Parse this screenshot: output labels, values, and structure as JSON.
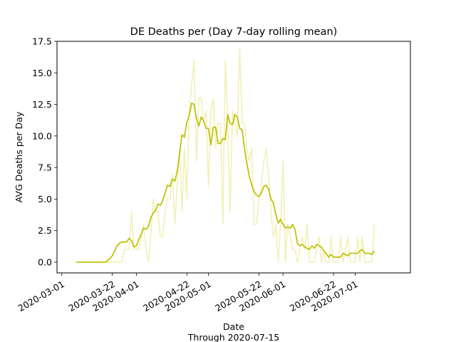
{
  "chart_data": {
    "type": "line",
    "title": "DE Deaths per (Day 7-day rolling mean)",
    "xlabel": "Date",
    "xlabel_sub": "Through 2020-07-15",
    "ylabel": "AVG Deaths per Day",
    "xlim": [
      "2020-02-28",
      "2020-07-24"
    ],
    "ylim": [
      -0.85,
      17.5
    ],
    "x_ticks": [
      "2020-03-01",
      "2020-03-22",
      "2020-04-01",
      "2020-04-22",
      "2020-05-01",
      "2020-05-22",
      "2020-06-01",
      "2020-06-22",
      "2020-07-01"
    ],
    "y_ticks": [
      0.0,
      2.5,
      5.0,
      7.5,
      10.0,
      12.5,
      15.0,
      17.5
    ],
    "y_tick_labels": [
      "0.0",
      "2.5",
      "5.0",
      "7.5",
      "10.0",
      "12.5",
      "15.0",
      "17.5"
    ],
    "grid": false,
    "colors": {
      "daily": "#f2f0b8",
      "rolling": "#bfbf00"
    },
    "x_start": "2020-03-07",
    "series": [
      {
        "key": "daily",
        "values": [
          0,
          0,
          0,
          0,
          0,
          0,
          0,
          0,
          0,
          0,
          0,
          0,
          0,
          0,
          0,
          0,
          0,
          0,
          0,
          0,
          1,
          1,
          1,
          4,
          1,
          1,
          1,
          2,
          3,
          1,
          0,
          2,
          5,
          4,
          4,
          2,
          2,
          4,
          5,
          5,
          7,
          3,
          6,
          9,
          4,
          9,
          5,
          12,
          14,
          16,
          8,
          13,
          13,
          11,
          12,
          6,
          12,
          13,
          9,
          11,
          11,
          3,
          16,
          11,
          4,
          12,
          11,
          10,
          17,
          11,
          11,
          9,
          8,
          9,
          3,
          3,
          5,
          6,
          8,
          9,
          7,
          4,
          2,
          3,
          0,
          3,
          8,
          0,
          3,
          2,
          1,
          1,
          0,
          1,
          2,
          1,
          3,
          0,
          0,
          0,
          1,
          2,
          0,
          1,
          0,
          0,
          2,
          0,
          0,
          0,
          2,
          0,
          1,
          2,
          0,
          0,
          0,
          2,
          0,
          2,
          0,
          0,
          0,
          0,
          3
        ]
      },
      {
        "key": "rolling",
        "values": [
          0,
          0,
          0,
          0,
          0,
          0,
          0,
          0,
          0,
          0,
          0,
          0,
          0,
          0.1,
          0.3,
          0.5,
          0.9,
          1.3,
          1.5,
          1.6,
          1.6,
          1.6,
          1.9,
          1.7,
          1.2,
          1.3,
          1.8,
          2.2,
          2.7,
          2.6,
          2.8,
          3.5,
          3.9,
          4.1,
          4.6,
          4.5,
          4.9,
          5.5,
          6.1,
          6.0,
          6.6,
          6.4,
          7.2,
          8.6,
          10.1,
          9.9,
          11.1,
          11.6,
          12.6,
          12.5,
          11.4,
          10.8,
          11.5,
          11.2,
          10.6,
          10.6,
          9.3,
          10.7,
          10.7,
          9.4,
          9.4,
          9.8,
          9.7,
          11.7,
          11.0,
          10.9,
          11.7,
          11.5,
          10.6,
          10.5,
          9.0,
          7.8,
          6.8,
          6.1,
          5.6,
          5.3,
          5.2,
          5.5,
          6.0,
          6.1,
          5.8,
          5.0,
          4.7,
          3.8,
          3.1,
          3.4,
          3.0,
          2.7,
          2.8,
          2.7,
          3.0,
          2.6,
          1.5,
          1.3,
          1.4,
          1.2,
          1.1,
          1.0,
          1.3,
          1.1,
          1.4,
          1.3,
          1.2,
          0.9,
          0.7,
          0.4,
          0.6,
          0.4,
          0.4,
          0.4,
          0.4,
          0.7,
          0.6,
          0.5,
          0.7,
          0.7,
          0.7,
          0.7,
          0.9,
          1.0,
          0.7,
          0.7,
          0.7,
          0.6,
          0.9
        ]
      }
    ]
  }
}
